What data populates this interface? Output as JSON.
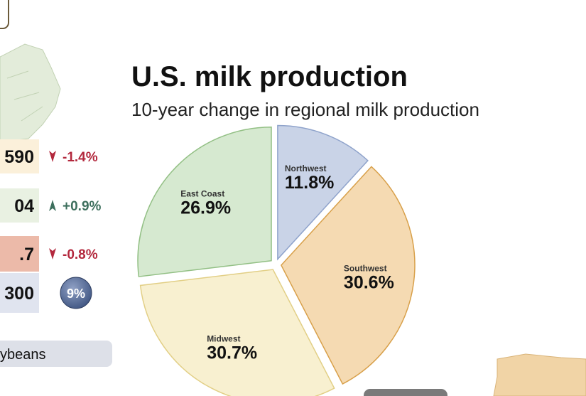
{
  "chart_data": {
    "type": "pie",
    "title": "U.S. milk production",
    "subtitle": "10-year change in regional milk production",
    "categories": [
      "Northwest",
      "Southwest",
      "Midwest",
      "East Coast"
    ],
    "values": [
      11.8,
      30.6,
      30.7,
      26.9
    ],
    "value_labels": [
      "11.8%",
      "30.6%",
      "30.7%",
      "26.9%"
    ],
    "colors": [
      "#c9d3e7",
      "#f5dab2",
      "#f8f0d0",
      "#d6e9d0"
    ],
    "strokes": [
      "#8fa3cb",
      "#d8a04a",
      "#e2cf86",
      "#93c085"
    ]
  },
  "sidebar": {
    "rows": [
      {
        "value": "590",
        "change": "-1.4%",
        "trend": "down"
      },
      {
        "value": "04",
        "change": "+0.9%",
        "trend": "up"
      },
      {
        "value": ".7",
        "change": "-0.8%",
        "trend": "down"
      },
      {
        "value": "300",
        "change": "9%",
        "trend": "badge"
      }
    ],
    "footer": "ybeans"
  }
}
